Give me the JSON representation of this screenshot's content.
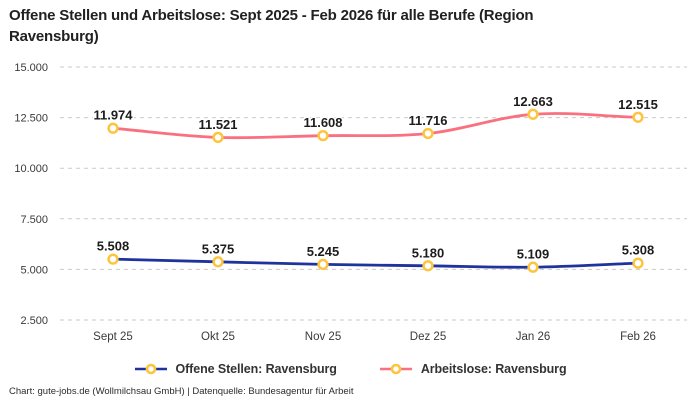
{
  "chart_data": {
    "type": "line",
    "title": "Offene Stellen und Arbeitslose: Sept 2025 - Feb 2026 für alle Berufe (Region Ravensburg)",
    "categories": [
      "Sept 25",
      "Okt 25",
      "Nov 25",
      "Dez 25",
      "Jan 26",
      "Feb 26"
    ],
    "series": [
      {
        "name": "Offene Stellen: Ravensburg",
        "color": "#1f339c",
        "values": [
          5508,
          5375,
          5245,
          5180,
          5109,
          5308
        ],
        "labels": [
          "5.508",
          "5.375",
          "5.245",
          "5.180",
          "5.109",
          "5.308"
        ]
      },
      {
        "name": "Arbeitslose: Ravensburg",
        "color": "#f9707f",
        "values": [
          11974,
          11521,
          11608,
          11716,
          12663,
          12515
        ],
        "labels": [
          "11.974",
          "11.521",
          "11.608",
          "11.716",
          "12.663",
          "12.515"
        ]
      }
    ],
    "marker": {
      "fill": "#ffffff",
      "stroke": "#fdc53f"
    },
    "y_axis": {
      "ticks": [
        15000,
        12500,
        10000,
        7500,
        5000,
        2500
      ],
      "tick_labels": [
        "15.000",
        "12.500",
        "10.000",
        "7.500",
        "5.000",
        "2.500"
      ],
      "ylim": [
        2500,
        15000
      ],
      "grid": "dashed",
      "grid_color": "#c9c9c9"
    },
    "xlabel": "",
    "ylabel": "",
    "legend_position": "bottom",
    "data_label_color": "#1c1c1c",
    "axis_label_color": "#3a3a3a"
  },
  "footer": {
    "credit": "Chart: gute-jobs.de (Wollmilchsau GmbH) | Datenquelle: Bundesagentur für Arbeit"
  }
}
